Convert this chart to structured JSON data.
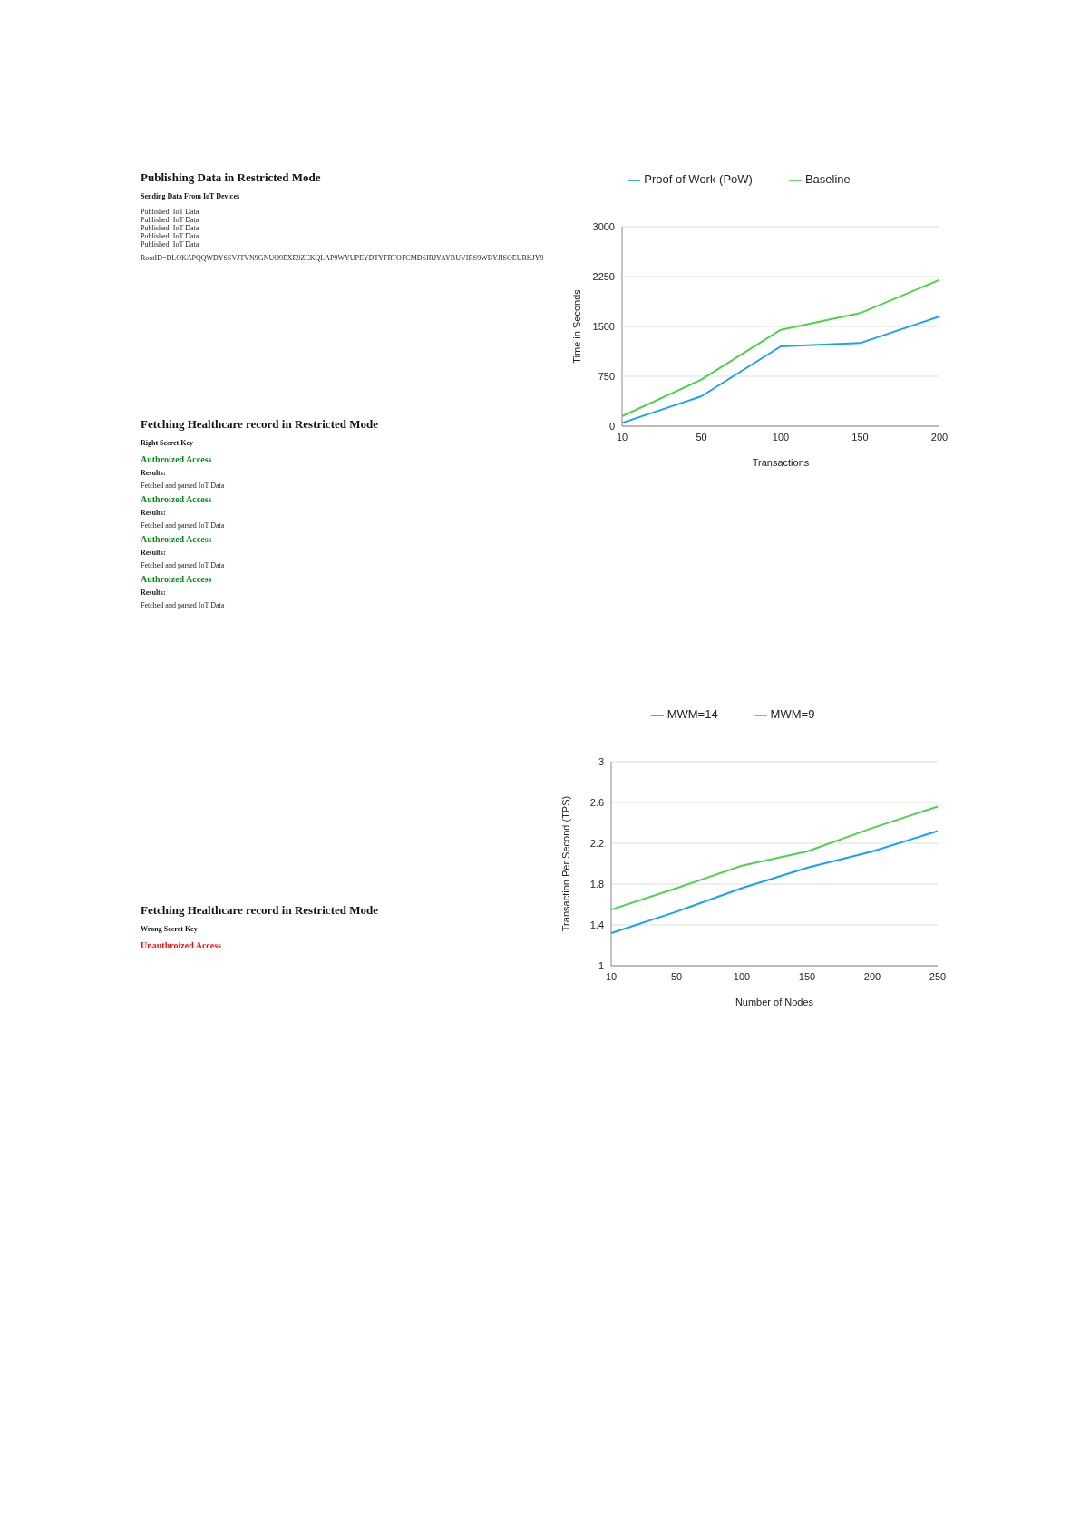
{
  "chart_data": [
    {
      "type": "other",
      "title": "Publishing Data in Restricted Mode",
      "subtitle": "Sending Data From IoT Devices",
      "annotations": [
        "Published: IoT Data",
        "Published: IoT Data",
        "Published: IoT Data",
        "Published: IoT Data",
        "Published: IoT Data",
        "RootID=DLOKAPQQWDYSSVJTVN9GNUO9EXE9ZCKQLAP9WYUPEYDTYFRTOFCMDSIRJYAYBUVIRS9WBYJISOEURKJY9"
      ],
      "colors": [
        null,
        null,
        null,
        null,
        null,
        null
      ]
    },
    {
      "type": "line",
      "categories": [
        "10",
        "50",
        "100",
        "150",
        "200"
      ],
      "xlabel": "Transactions",
      "ylabel": "Time in Seconds",
      "ylim": [
        0,
        3000
      ],
      "yticks": [
        0,
        750,
        1500,
        2250,
        3000
      ],
      "grid": "y",
      "legend": "top",
      "marker": "none",
      "line_style": "solid",
      "series": [
        {
          "name": "Proof of Work (PoW)",
          "color": "#1ba1f0",
          "values": [
            50,
            450,
            1200,
            1250,
            1650
          ]
        },
        {
          "name": "Baseline",
          "color": "#4dd24d",
          "values": [
            150,
            700,
            1450,
            1700,
            2200
          ]
        }
      ]
    },
    {
      "type": "other",
      "title": "Fetching Healthcare record in Restricted Mode",
      "subtitle": "Right Secret Key",
      "annotations": [
        "Authroized Access",
        "Results:",
        "Fetched and parsed IoT Data",
        "Authroized Access",
        "Results:",
        "Fetched and parsed IoT Data",
        "Authroized Access",
        "Results:",
        "Fetched and parsed IoT Data",
        "Authroized Access",
        "Results:",
        "Fetched and parsed IoT Data"
      ],
      "colors": [
        "#0a8a1a",
        null,
        null,
        "#0a8a1a",
        null,
        null,
        "#0a8a1a",
        null,
        null,
        "#0a8a1a",
        null,
        null
      ]
    },
    {
      "type": "line",
      "categories": [
        "10",
        "50",
        "100",
        "150",
        "200",
        "250"
      ],
      "xlabel": "Number of Nodes",
      "ylabel": "Transaction Per Second (TPS)",
      "ylim": [
        1,
        3
      ],
      "yticks": [
        1,
        1.4,
        1.8,
        2.2,
        2.6,
        3
      ],
      "grid": "y",
      "legend": "top",
      "marker": "none",
      "line_style": "solid",
      "series": [
        {
          "name": "MWM=14",
          "color": "#1ba1f0",
          "values": [
            1.32,
            1.53,
            1.76,
            1.96,
            2.12,
            2.32
          ]
        },
        {
          "name": "MWM=9",
          "color": "#4dd24d",
          "values": [
            1.55,
            1.76,
            1.98,
            2.12,
            2.35,
            2.56
          ]
        }
      ]
    },
    {
      "type": "other",
      "title": "Fetching Healthcare record in Restricted Mode",
      "subtitle": "Wrong Secret Key",
      "annotations": [
        "Unauthroized Access"
      ],
      "colors": [
        "#ee1111"
      ]
    }
  ]
}
